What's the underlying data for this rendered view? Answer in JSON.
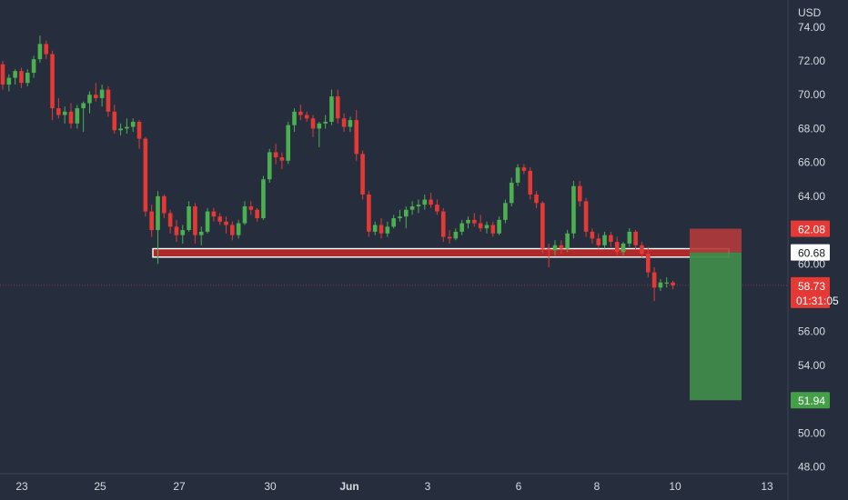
{
  "chart_data": {
    "type": "candlestick",
    "currency": "USD",
    "colors": {
      "background": "#262e3e",
      "up": "#4caf50",
      "down": "#e53935",
      "stop_zone": "#b33a3a",
      "target_zone": "#3f8a4a",
      "level_band": "#c62828",
      "label_red": "#e53935",
      "label_green": "#43a047"
    },
    "x_axis": {
      "ticks": [
        "23",
        "25",
        "27",
        "30",
        "Jun",
        "3",
        "6",
        "8",
        "10",
        "13"
      ],
      "bold_ticks": [
        "Jun"
      ]
    },
    "y_axis": {
      "ticks": [
        "74.00",
        "72.00",
        "70.00",
        "68.00",
        "66.00",
        "64.00",
        "62.00",
        "60.00",
        "58.00",
        "56.00",
        "54.00",
        "52.00",
        "50.00",
        "48.00"
      ],
      "range": [
        47.6,
        75.6
      ]
    },
    "candles": [
      [
        71.8,
        72.0,
        70.3,
        70.6
      ],
      [
        70.6,
        71.2,
        70.2,
        71.0
      ],
      [
        71.0,
        71.5,
        70.6,
        71.4
      ],
      [
        71.4,
        71.6,
        70.4,
        70.7
      ],
      [
        70.7,
        71.5,
        70.5,
        71.3
      ],
      [
        71.3,
        72.3,
        71.0,
        72.1
      ],
      [
        72.1,
        73.5,
        71.9,
        73.0
      ],
      [
        73.0,
        73.2,
        72.1,
        72.4
      ],
      [
        72.4,
        72.6,
        68.5,
        69.2
      ],
      [
        69.2,
        69.8,
        68.6,
        68.8
      ],
      [
        68.8,
        69.3,
        68.3,
        69.0
      ],
      [
        69.0,
        69.5,
        68.0,
        68.3
      ],
      [
        68.3,
        69.4,
        68.0,
        69.2
      ],
      [
        69.2,
        69.6,
        67.8,
        69.5
      ],
      [
        69.5,
        70.2,
        68.9,
        70.0
      ],
      [
        70.0,
        70.7,
        69.6,
        69.8
      ],
      [
        69.8,
        70.6,
        69.3,
        70.3
      ],
      [
        70.3,
        70.5,
        68.7,
        69.0
      ],
      [
        69.0,
        69.4,
        67.7,
        67.9
      ],
      [
        67.9,
        68.3,
        67.6,
        68.0
      ],
      [
        68.0,
        68.6,
        67.7,
        68.1
      ],
      [
        68.1,
        68.6,
        67.8,
        68.4
      ],
      [
        68.4,
        68.5,
        66.8,
        67.4
      ],
      [
        67.4,
        67.5,
        62.8,
        63.1
      ],
      [
        63.1,
        63.5,
        61.6,
        62.0
      ],
      [
        62.0,
        64.3,
        60.0,
        64.0
      ],
      [
        64.0,
        64.1,
        62.7,
        63.0
      ],
      [
        63.0,
        63.2,
        61.8,
        62.2
      ],
      [
        62.2,
        62.6,
        61.3,
        61.7
      ],
      [
        61.7,
        62.3,
        61.2,
        62.0
      ],
      [
        62.0,
        63.7,
        61.9,
        63.4
      ],
      [
        63.4,
        63.6,
        61.2,
        61.7
      ],
      [
        61.7,
        62.2,
        61.1,
        61.9
      ],
      [
        61.9,
        63.3,
        61.8,
        63.1
      ],
      [
        63.1,
        63.3,
        62.5,
        62.8
      ],
      [
        62.8,
        63.0,
        62.3,
        62.5
      ],
      [
        62.5,
        62.8,
        61.8,
        62.3
      ],
      [
        62.3,
        62.5,
        61.4,
        61.7
      ],
      [
        61.7,
        62.6,
        61.5,
        62.4
      ],
      [
        62.4,
        63.7,
        62.3,
        63.4
      ],
      [
        63.4,
        63.7,
        62.9,
        63.2
      ],
      [
        63.2,
        63.3,
        62.5,
        62.7
      ],
      [
        62.7,
        65.2,
        62.6,
        65.0
      ],
      [
        65.0,
        66.8,
        64.8,
        66.6
      ],
      [
        66.6,
        67.1,
        65.9,
        66.3
      ],
      [
        66.3,
        66.6,
        65.6,
        66.1
      ],
      [
        66.1,
        68.4,
        65.9,
        68.2
      ],
      [
        68.2,
        69.2,
        67.8,
        69.0
      ],
      [
        69.0,
        69.4,
        68.5,
        68.8
      ],
      [
        68.8,
        69.0,
        68.4,
        68.6
      ],
      [
        68.6,
        68.8,
        67.5,
        68.0
      ],
      [
        68.0,
        68.4,
        66.9,
        68.3
      ],
      [
        68.3,
        68.8,
        68.0,
        68.4
      ],
      [
        68.4,
        70.3,
        68.2,
        69.9
      ],
      [
        69.9,
        70.3,
        68.3,
        68.6
      ],
      [
        68.6,
        68.9,
        67.8,
        68.1
      ],
      [
        68.1,
        68.7,
        67.8,
        68.5
      ],
      [
        68.5,
        69.1,
        66.1,
        66.5
      ],
      [
        66.5,
        66.7,
        63.8,
        64.1
      ],
      [
        64.1,
        64.3,
        61.6,
        61.9
      ],
      [
        61.9,
        62.5,
        61.7,
        62.3
      ],
      [
        62.3,
        62.7,
        61.5,
        61.8
      ],
      [
        61.8,
        62.5,
        61.6,
        62.2
      ],
      [
        62.2,
        62.9,
        62.1,
        62.7
      ],
      [
        62.7,
        63.2,
        62.5,
        62.8
      ],
      [
        62.8,
        63.4,
        62.1,
        63.2
      ],
      [
        63.2,
        63.7,
        62.9,
        63.4
      ],
      [
        63.4,
        63.8,
        63.0,
        63.5
      ],
      [
        63.5,
        64.1,
        63.2,
        63.8
      ],
      [
        63.8,
        64.2,
        63.3,
        63.5
      ],
      [
        63.5,
        63.8,
        62.9,
        63.1
      ],
      [
        63.1,
        63.3,
        61.3,
        61.6
      ],
      [
        61.6,
        62.0,
        61.2,
        61.5
      ],
      [
        61.5,
        62.1,
        61.4,
        61.9
      ],
      [
        61.9,
        62.6,
        61.7,
        62.4
      ],
      [
        62.4,
        62.8,
        62.1,
        62.6
      ],
      [
        62.6,
        63.0,
        62.2,
        62.4
      ],
      [
        62.4,
        62.9,
        61.9,
        62.1
      ],
      [
        62.1,
        62.5,
        61.8,
        62.3
      ],
      [
        62.3,
        62.5,
        61.6,
        61.8
      ],
      [
        61.8,
        62.8,
        61.7,
        62.6
      ],
      [
        62.6,
        63.8,
        62.4,
        63.6
      ],
      [
        63.6,
        65.1,
        63.4,
        64.8
      ],
      [
        64.8,
        65.9,
        64.6,
        65.7
      ],
      [
        65.7,
        65.9,
        65.3,
        65.5
      ],
      [
        65.5,
        65.7,
        63.8,
        64.1
      ],
      [
        64.1,
        64.3,
        63.3,
        63.6
      ],
      [
        63.6,
        63.7,
        60.6,
        60.9
      ],
      [
        60.9,
        61.2,
        59.8,
        60.8
      ],
      [
        60.8,
        61.4,
        60.5,
        61.1
      ],
      [
        61.1,
        61.4,
        60.6,
        60.9
      ],
      [
        60.9,
        62.0,
        60.7,
        61.8
      ],
      [
        61.8,
        64.9,
        61.5,
        64.6
      ],
      [
        64.6,
        64.9,
        63.4,
        63.7
      ],
      [
        63.7,
        63.9,
        61.6,
        61.9
      ],
      [
        61.9,
        62.1,
        61.2,
        61.5
      ],
      [
        61.5,
        61.8,
        60.9,
        61.1
      ],
      [
        61.1,
        61.9,
        60.9,
        61.7
      ],
      [
        61.7,
        61.9,
        61.0,
        61.3
      ],
      [
        61.3,
        61.6,
        60.5,
        60.7
      ],
      [
        60.7,
        61.3,
        60.5,
        61.2
      ],
      [
        61.2,
        62.1,
        61.0,
        61.9
      ],
      [
        61.9,
        62.0,
        60.8,
        61.1
      ],
      [
        61.1,
        61.3,
        60.4,
        60.6
      ],
      [
        60.6,
        61.0,
        59.2,
        59.5
      ],
      [
        59.5,
        59.8,
        57.8,
        58.6
      ],
      [
        58.6,
        59.1,
        58.4,
        58.9
      ],
      [
        58.9,
        59.2,
        58.6,
        58.9
      ],
      [
        58.9,
        59.0,
        58.5,
        58.73
      ]
    ],
    "position": {
      "stop_loss": 62.08,
      "entry": 60.68,
      "take_profit": 51.94
    },
    "level_band": [
      60.4,
      60.9
    ],
    "labels": {
      "stop_loss_text": "62.08",
      "entry_text": "60.68",
      "last_price_text": "58.73",
      "countdown_text": "01:31:05",
      "target_text": "51.94"
    }
  }
}
